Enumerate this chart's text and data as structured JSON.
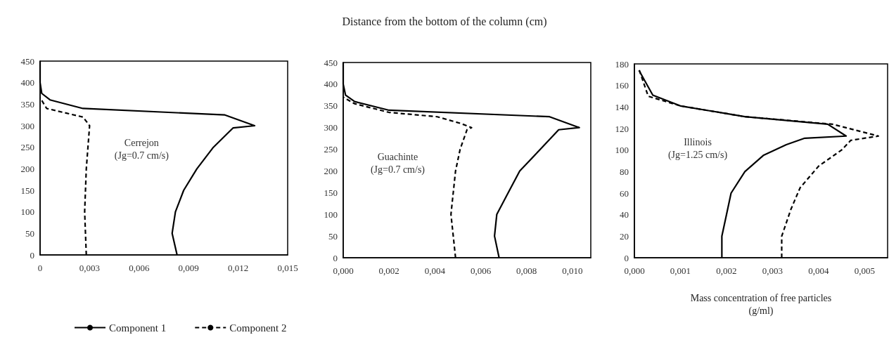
{
  "chart_data": [
    {
      "type": "line",
      "ylabel": "Distance from the bottom of the column (cm)",
      "annotations": [
        "Cerrejon\n(Jg=0.7 cm/s)"
      ],
      "xlim": [
        0,
        0.015
      ],
      "xticks": [
        0,
        {
          "value": 0.003,
          "label": "0,003"
        },
        {
          "value": 0.006,
          "label": "0,006"
        },
        {
          "value": 0.009,
          "label": "0,009"
        },
        {
          "value": 0.012,
          "label": "0,012"
        },
        {
          "value": 0.015,
          "label": "0,015"
        }
      ],
      "ylim": [
        0,
        450
      ],
      "yticks": [
        0,
        50,
        100,
        150,
        200,
        250,
        300,
        350,
        400,
        450
      ],
      "marker": "none",
      "legend": "bottom",
      "series": [
        {
          "name": "Component 1",
          "color": "#000000",
          "line_style": "solid",
          "x": [
            0.0083,
            0.008,
            0.0082,
            0.0087,
            0.0095,
            0.0105,
            0.0117,
            0.013,
            0.0112,
            0.0026,
            0.0006,
            0.0001,
            0.0,
            0.0
          ],
          "values": [
            0,
            50,
            100,
            150,
            200,
            250,
            295,
            300,
            325,
            340,
            360,
            375,
            400,
            450
          ]
        },
        {
          "name": "Component 2",
          "color": "#000000",
          "line_style": "dashed",
          "x": [
            0.0028,
            0.0027,
            0.0028,
            0.0029,
            0.003,
            0.0026,
            0.0004,
            0.0
          ],
          "values": [
            0,
            100,
            200,
            250,
            300,
            320,
            340,
            365
          ]
        }
      ]
    },
    {
      "type": "line",
      "annotations": [
        "Guachinte\n(Jg=0.7 cm/s)"
      ],
      "xlim": [
        0,
        0.0108
      ],
      "xticks": [
        {
          "value": 0,
          "label": "0,000"
        },
        {
          "value": 0.002,
          "label": "0,002"
        },
        {
          "value": 0.004,
          "label": "0,004"
        },
        {
          "value": 0.006,
          "label": "0,006"
        },
        {
          "value": 0.008,
          "label": "0,008"
        },
        {
          "value": 0.01,
          "label": "0,010"
        }
      ],
      "ylim": [
        0,
        450
      ],
      "yticks": [
        0,
        50,
        100,
        150,
        200,
        250,
        300,
        350,
        400,
        450
      ],
      "marker": "none",
      "series": [
        {
          "color": "#000000",
          "line_style": "solid",
          "x": [
            0.0068,
            0.0066,
            0.0067,
            0.0072,
            0.0077,
            0.0086,
            0.0094,
            0.0103,
            0.009,
            0.002,
            0.0005,
            0.0001,
            0.0,
            0.0
          ],
          "values": [
            0,
            50,
            100,
            150,
            200,
            250,
            295,
            300,
            325,
            340,
            360,
            375,
            400,
            450
          ]
        },
        {
          "color": "#000000",
          "line_style": "dashed",
          "x": [
            0.0049,
            0.0047,
            0.0049,
            0.0051,
            0.0054,
            0.0056,
            0.0051,
            0.0041,
            0.002,
            0.0005,
            0.0
          ],
          "values": [
            0,
            100,
            200,
            250,
            295,
            300,
            310,
            325,
            335,
            355,
            370
          ]
        }
      ]
    },
    {
      "type": "line",
      "xlabel": "Mass concentration of free particles\n(g/ml)",
      "annotations": [
        "Illinois\n(Jg=1.25 cm/s)"
      ],
      "xlim": [
        0,
        0.0055
      ],
      "xticks": [
        {
          "value": 0,
          "label": "0,000"
        },
        {
          "value": 0.001,
          "label": "0,001"
        },
        {
          "value": 0.002,
          "label": "0,002"
        },
        {
          "value": 0.003,
          "label": "0,003"
        },
        {
          "value": 0.004,
          "label": "0,004"
        },
        {
          "value": 0.005,
          "label": "0,005"
        }
      ],
      "ylim": [
        0,
        180
      ],
      "yticks": [
        0,
        20,
        40,
        60,
        80,
        100,
        120,
        140,
        160,
        180
      ],
      "marker": "none",
      "series": [
        {
          "color": "#000000",
          "line_style": "solid",
          "x": [
            0.0019,
            0.0019,
            0.002,
            0.0021,
            0.0024,
            0.0028,
            0.0033,
            0.0037,
            0.0046,
            0.0042,
            0.0024,
            0.001,
            0.0004,
            0.0001
          ],
          "values": [
            0,
            20,
            40,
            60,
            80,
            95,
            105,
            111,
            113,
            124,
            131,
            141,
            151,
            174
          ]
        },
        {
          "color": "#000000",
          "line_style": "dashed",
          "x": [
            0.0032,
            0.0032,
            0.0034,
            0.0036,
            0.004,
            0.0045,
            0.0047,
            0.0053,
            0.0043,
            0.0024,
            0.001,
            0.0003,
            0.0001
          ],
          "values": [
            0,
            20,
            45,
            65,
            85,
            100,
            109,
            113,
            124,
            131,
            141,
            150,
            175
          ]
        }
      ]
    }
  ]
}
